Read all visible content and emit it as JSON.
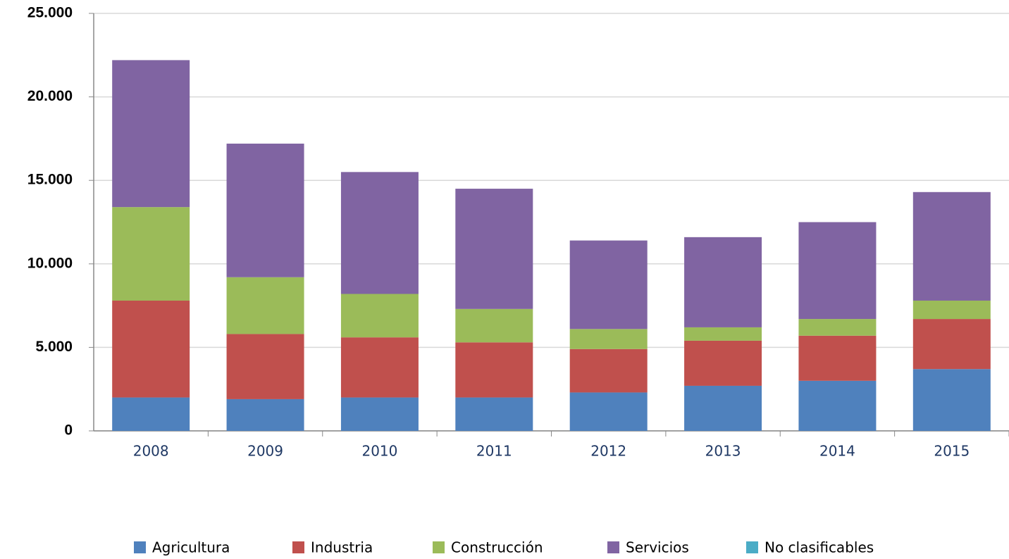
{
  "chart_data": {
    "type": "stacked_bar",
    "categories": [
      "2008",
      "2009",
      "2010",
      "2011",
      "2012",
      "2013",
      "2014",
      "2015"
    ],
    "series": [
      {
        "name": "Agricultura",
        "color": "#4f81bd",
        "values": [
          2000,
          1900,
          2000,
          2000,
          2300,
          2700,
          3000,
          3700
        ]
      },
      {
        "name": "Industria",
        "color": "#c0504d",
        "values": [
          5800,
          3900,
          3600,
          3300,
          2600,
          2700,
          2700,
          3000
        ]
      },
      {
        "name": "Construcción",
        "color": "#9bbb59",
        "values": [
          5600,
          3400,
          2600,
          2000,
          1200,
          800,
          1000,
          1100
        ]
      },
      {
        "name": "Servicios",
        "color": "#8064a2",
        "values": [
          8800,
          8000,
          7300,
          7200,
          5300,
          5400,
          5800,
          6500
        ]
      },
      {
        "name": "No clasificables",
        "color": "#4bacc6",
        "values": [
          0,
          0,
          0,
          0,
          0,
          0,
          0,
          0
        ]
      }
    ],
    "ylim": [
      0,
      25000
    ],
    "yticks": [
      0,
      {
        "value": 5000,
        "label": "5.000"
      },
      {
        "value": 10000,
        "label": "10.000"
      },
      {
        "value": 15000,
        "label": "15.000"
      },
      {
        "value": 20000,
        "label": "20.000"
      },
      {
        "value": 25000,
        "label": "25.000"
      }
    ],
    "grid": true,
    "legend": "bottom"
  }
}
